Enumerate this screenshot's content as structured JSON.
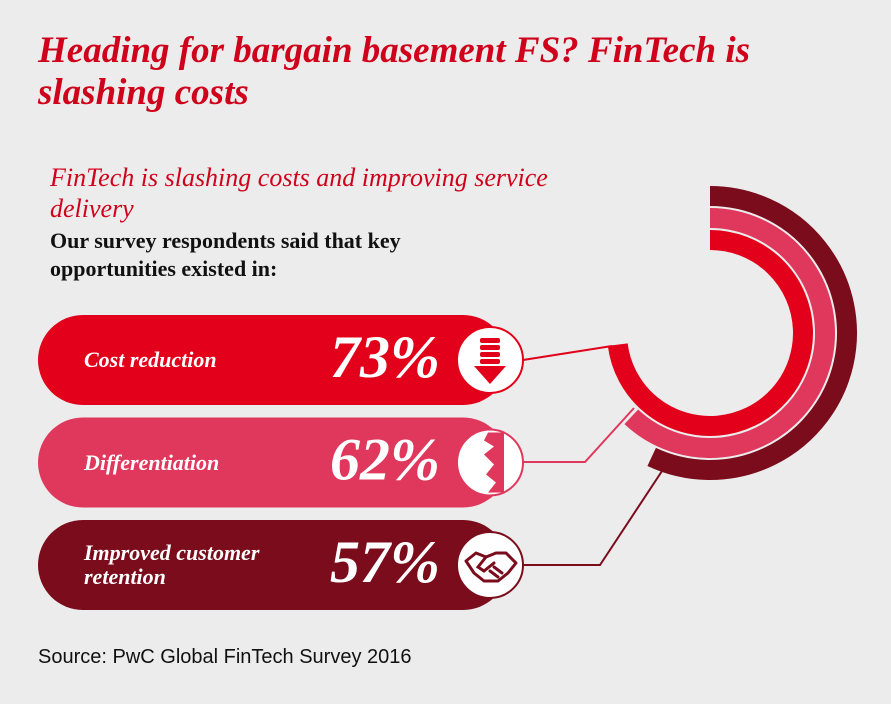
{
  "chart_data": {
    "type": "radial-bar",
    "title": "Heading for bargain basement FS? FinTech is slashing costs",
    "subtitle": "FinTech is slashing costs and improving service delivery",
    "description": "Our survey respondents said that key opportunities existed in:",
    "categories": [
      "Cost reduction",
      "Differentiation",
      "Improved customer retention"
    ],
    "values": [
      73,
      62,
      57
    ],
    "value_labels": [
      "73%",
      "62%",
      "57%"
    ],
    "colors": [
      "#e2001a",
      "#e0385c",
      "#7b0c1c"
    ],
    "ylim": [
      0,
      100
    ],
    "source": "Source: PwC Global FinTech Survey 2016"
  }
}
